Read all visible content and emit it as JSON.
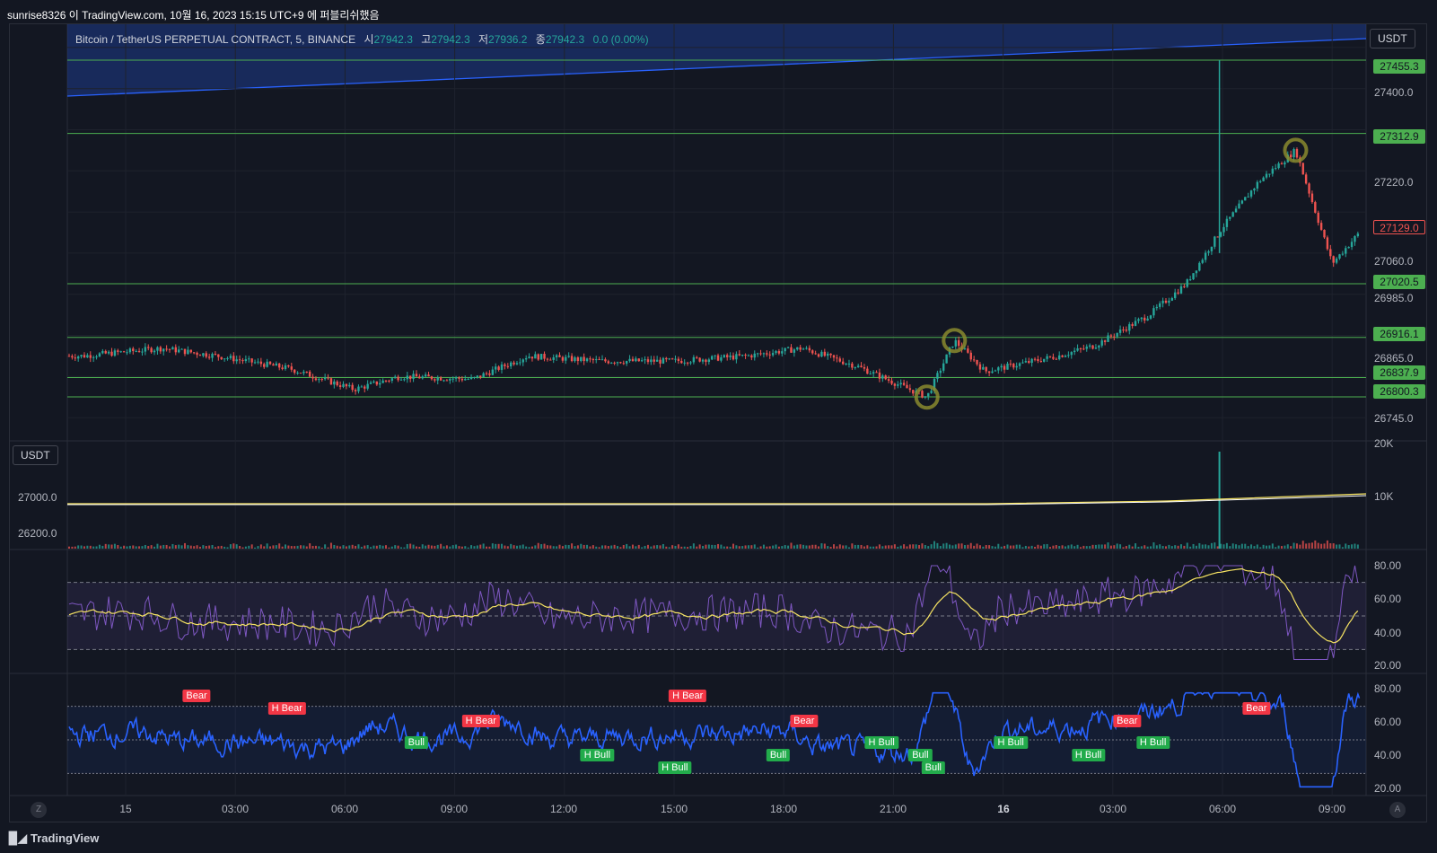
{
  "header": {
    "snapshot_text": "sunrise8326 이 TradingView.com, 10월 16, 2023 15:15 UTC+9 에 퍼블리쉬했음"
  },
  "legend": {
    "symbol": "Bitcoin / TetherUS PERPETUAL CONTRACT, 5, BINANCE",
    "open_label": "시",
    "open": "27942.3",
    "high_label": "고",
    "high": "27942.3",
    "low_label": "저",
    "low": "27936.2",
    "close_label": "종",
    "close": "27942.3",
    "change": "0.0 (0.00%)"
  },
  "price_axis": {
    "unit": "USDT",
    "ticks": [
      "27400.0",
      "27220.0",
      "27060.0",
      "26985.0",
      "26865.0",
      "26745.0"
    ],
    "level_tags": [
      "27455.3",
      "27312.9",
      "27020.5",
      "26916.1",
      "26837.9",
      "26800.3"
    ],
    "last_price": "27129.0"
  },
  "volume_pane": {
    "unit": "USDT",
    "left_ticks": [
      "27000.0",
      "26200.0"
    ],
    "right_ticks": [
      "20K",
      "10K"
    ]
  },
  "rsi_pane": {
    "ticks": [
      "80.00",
      "60.00",
      "40.00",
      "20.00"
    ]
  },
  "osc_pane": {
    "ticks": [
      "80.00",
      "60.00",
      "40.00",
      "20.00"
    ],
    "signals": [
      {
        "label": "Bear",
        "type": "bear",
        "x": 0.1
      },
      {
        "label": "H Bear",
        "type": "bear",
        "x": 0.17
      },
      {
        "label": "H Bear",
        "type": "bear",
        "x": 0.32
      },
      {
        "label": "Bull",
        "type": "bull",
        "x": 0.27
      },
      {
        "label": "H Bull",
        "type": "bull",
        "x": 0.41
      },
      {
        "label": "H Bull",
        "type": "bull",
        "x": 0.47
      },
      {
        "label": "H Bear",
        "type": "bear",
        "x": 0.48
      },
      {
        "label": "Bull",
        "type": "bull",
        "x": 0.55
      },
      {
        "label": "Bear",
        "type": "bear",
        "x": 0.57
      },
      {
        "label": "H Bull",
        "type": "bull",
        "x": 0.63
      },
      {
        "label": "Bull",
        "type": "bull",
        "x": 0.66
      },
      {
        "label": "Bull",
        "type": "bull",
        "x": 0.67
      },
      {
        "label": "H Bull",
        "type": "bull",
        "x": 0.73
      },
      {
        "label": "H Bull",
        "type": "bull",
        "x": 0.79
      },
      {
        "label": "Bear",
        "type": "bear",
        "x": 0.82
      },
      {
        "label": "H Bull",
        "type": "bull",
        "x": 0.84
      },
      {
        "label": "Bear",
        "type": "bear",
        "x": 0.92
      }
    ]
  },
  "time_axis": {
    "labels": [
      "15",
      "03:00",
      "06:00",
      "09:00",
      "12:00",
      "15:00",
      "18:00",
      "21:00",
      "16",
      "03:00",
      "06:00",
      "09:00"
    ],
    "left_button": "Z",
    "right_button": "A"
  },
  "footer": {
    "brand": "TradingView"
  },
  "colors": {
    "background": "#131722",
    "bull": "#26a69a",
    "bear": "#ef5350",
    "level_line": "#4caf50",
    "channel": "#2962ff",
    "rsi": "#7e57c2",
    "rsi_ma": "#f7e463",
    "osc": "#2962ff"
  },
  "chart_data": {
    "type": "candlestick",
    "symbol": "Bitcoin / TetherUS PERPETUAL CONTRACT",
    "interval": "5",
    "horizontal_levels": [
      27455.3,
      27312.9,
      27020.5,
      26916.1,
      26837.9,
      26800.3
    ],
    "last_price": 27129.0,
    "ylim": [
      26720,
      27520
    ],
    "price_path": [
      {
        "t": "14 22:50",
        "p": 26880
      },
      {
        "t": "15 01:00",
        "p": 26895
      },
      {
        "t": "15 02:30",
        "p": 26880
      },
      {
        "t": "15 04:30",
        "p": 26855
      },
      {
        "t": "15 06:15",
        "p": 26815
      },
      {
        "t": "15 07:30",
        "p": 26840
      },
      {
        "t": "15 09:30",
        "p": 26835
      },
      {
        "t": "15 11:00",
        "p": 26880
      },
      {
        "t": "15 13:00",
        "p": 26870
      },
      {
        "t": "15 15:00",
        "p": 26870
      },
      {
        "t": "15 17:00",
        "p": 26880
      },
      {
        "t": "15 18:30",
        "p": 26895
      },
      {
        "t": "15 20:00",
        "p": 26860
      },
      {
        "t": "15 21:55",
        "p": 26800
      },
      {
        "t": "15 22:40",
        "p": 26910
      },
      {
        "t": "15 23:30",
        "p": 26850
      },
      {
        "t": "16 00:10",
        "p": 26860
      },
      {
        "t": "16 01:30",
        "p": 26880
      },
      {
        "t": "16 02:30",
        "p": 26900
      },
      {
        "t": "16 04:00",
        "p": 26960
      },
      {
        "t": "16 05:00",
        "p": 27020
      },
      {
        "t": "16 06:00",
        "p": 27130
      },
      {
        "t": "16 07:00",
        "p": 27220
      },
      {
        "t": "16 08:00",
        "p": 27280
      },
      {
        "t": "16 09:00",
        "p": 27060
      },
      {
        "t": "16 10:00",
        "p": 27140
      },
      {
        "t": "16 11:25",
        "p": 27129
      }
    ],
    "volume_peak": 20000,
    "rsi_levels": [
      30,
      50,
      70
    ]
  }
}
